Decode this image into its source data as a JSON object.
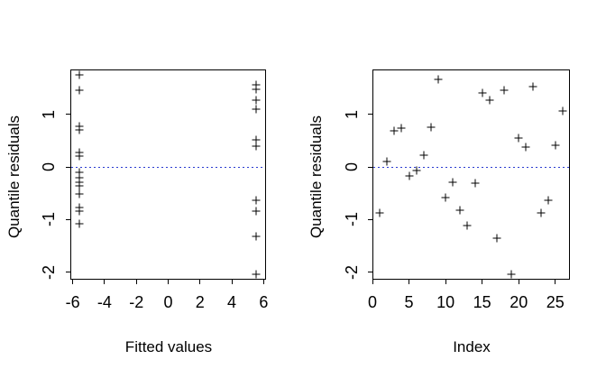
{
  "figure": {
    "description": "Two-panel quantile residual diagnostic scatter plots",
    "colors": {
      "background": "#ffffff",
      "foreground": "#000000",
      "zero_line": "#2a3bd0"
    }
  },
  "chart_data": [
    {
      "type": "scatter",
      "title": "",
      "xlabel": "Fitted values",
      "ylabel": "Quantile residuals",
      "marker": "plus",
      "grid": false,
      "xlim": [
        -6.15,
        6.15
      ],
      "ylim": [
        -2.14,
        1.85
      ],
      "x_ticks": [
        "-6",
        "-4",
        "-2",
        "0",
        "2",
        "4",
        "6"
      ],
      "x_tick_values": [
        -6,
        -4,
        -2,
        0,
        2,
        4,
        6
      ],
      "y_ticks": [
        "-2",
        "-1",
        "0",
        "1"
      ],
      "y_tick_values": [
        -2,
        -1,
        0,
        1
      ],
      "zero_line": {
        "y": 0,
        "style": "dotted",
        "color": "#2a3bd0"
      },
      "points": [
        [
          -5.58,
          1.74
        ],
        [
          -5.58,
          1.46
        ],
        [
          -5.58,
          0.77
        ],
        [
          -5.58,
          0.7
        ],
        [
          -5.58,
          0.28
        ],
        [
          -5.58,
          0.2
        ],
        [
          -5.58,
          -0.1
        ],
        [
          -5.58,
          -0.21
        ],
        [
          -5.58,
          -0.29
        ],
        [
          -5.58,
          -0.36
        ],
        [
          -5.58,
          -0.52
        ],
        [
          -5.58,
          -0.77
        ],
        [
          -5.58,
          -0.84
        ],
        [
          -5.58,
          -1.07
        ],
        [
          5.55,
          1.56
        ],
        [
          5.55,
          1.47
        ],
        [
          5.55,
          1.26
        ],
        [
          5.55,
          1.09
        ],
        [
          5.55,
          0.51
        ],
        [
          5.55,
          0.4
        ],
        [
          5.55,
          -0.63
        ],
        [
          5.55,
          -0.83
        ],
        [
          5.55,
          -1.32
        ],
        [
          5.55,
          -2.03
        ]
      ]
    },
    {
      "type": "scatter",
      "title": "",
      "xlabel": "Index",
      "ylabel": "Quantile residuals",
      "marker": "plus",
      "grid": false,
      "xlim": [
        0,
        27
      ],
      "ylim": [
        -2.14,
        1.85
      ],
      "x_ticks": [
        "0",
        "5",
        "10",
        "15",
        "20",
        "25"
      ],
      "x_tick_values": [
        0,
        5,
        10,
        15,
        20,
        25
      ],
      "y_ticks": [
        "-2",
        "-1",
        "0",
        "1"
      ],
      "y_tick_values": [
        -2,
        -1,
        0,
        1
      ],
      "zero_line": {
        "y": 0,
        "style": "dotted",
        "color": "#2a3bd0"
      },
      "points": [
        [
          1,
          -0.87
        ],
        [
          2,
          0.1
        ],
        [
          3,
          0.68
        ],
        [
          4,
          0.73
        ],
        [
          5,
          -0.17
        ],
        [
          6,
          -0.06
        ],
        [
          7,
          0.23
        ],
        [
          8,
          0.75
        ],
        [
          9,
          1.67
        ],
        [
          10,
          -0.58
        ],
        [
          11,
          -0.29
        ],
        [
          12,
          -0.82
        ],
        [
          13,
          -1.12
        ],
        [
          14,
          -0.31
        ],
        [
          15,
          1.4
        ],
        [
          16,
          1.26
        ],
        [
          17,
          -1.35
        ],
        [
          18,
          1.45
        ],
        [
          19,
          -2.03
        ],
        [
          20,
          0.54
        ],
        [
          21,
          0.38
        ],
        [
          22,
          1.52
        ],
        [
          23,
          -0.87
        ],
        [
          24,
          -0.64
        ],
        [
          25,
          0.41
        ],
        [
          26,
          1.06
        ]
      ]
    }
  ]
}
